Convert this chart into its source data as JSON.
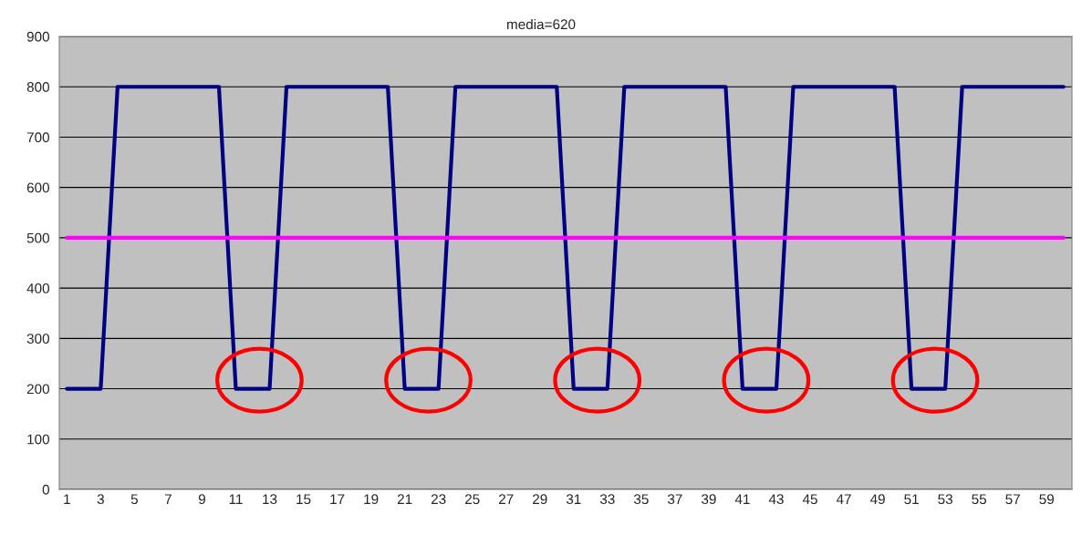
{
  "chart_data": {
    "type": "line",
    "title": "media=620",
    "categories": [
      "1",
      null,
      "3",
      null,
      "5",
      null,
      "7",
      null,
      "9",
      null,
      "11",
      null,
      "13",
      null,
      "15",
      null,
      "17",
      null,
      "19",
      null,
      "21",
      null,
      "23",
      null,
      "25",
      null,
      "27",
      null,
      "29",
      null,
      "31",
      null,
      "33",
      null,
      "35",
      null,
      "37",
      null,
      "39",
      null,
      "41",
      null,
      "43",
      null,
      "45",
      null,
      "47",
      null,
      "49",
      null,
      "51",
      null,
      "53",
      null,
      "55",
      null,
      "57",
      null,
      "59",
      null
    ],
    "series": [
      {
        "color": "#000080",
        "values": [
          200,
          200,
          200,
          800,
          800,
          800,
          800,
          800,
          800,
          800,
          200,
          200,
          200,
          800,
          800,
          800,
          800,
          800,
          800,
          800,
          200,
          200,
          200,
          800,
          800,
          800,
          800,
          800,
          800,
          800,
          200,
          200,
          200,
          800,
          800,
          800,
          800,
          800,
          800,
          800,
          200,
          200,
          200,
          800,
          800,
          800,
          800,
          800,
          800,
          800,
          200,
          200,
          200,
          800,
          800,
          800,
          800,
          800,
          800,
          800
        ]
      },
      {
        "color": "#ff00ff",
        "values": [
          500,
          500,
          500,
          500,
          500,
          500,
          500,
          500,
          500,
          500,
          500,
          500,
          500,
          500,
          500,
          500,
          500,
          500,
          500,
          500,
          500,
          500,
          500,
          500,
          500,
          500,
          500,
          500,
          500,
          500,
          500,
          500,
          500,
          500,
          500,
          500,
          500,
          500,
          500,
          500,
          500,
          500,
          500,
          500,
          500,
          500,
          500,
          500,
          500,
          500,
          500,
          500,
          500,
          500,
          500,
          500,
          500,
          500,
          500,
          500
        ]
      }
    ],
    "ylim": [
      0,
      900
    ],
    "yticks": [
      0,
      100,
      200,
      300,
      400,
      500,
      600,
      700,
      800,
      900
    ],
    "grid": "y",
    "legend": false,
    "marker": "none",
    "line_style": "solid"
  }
}
